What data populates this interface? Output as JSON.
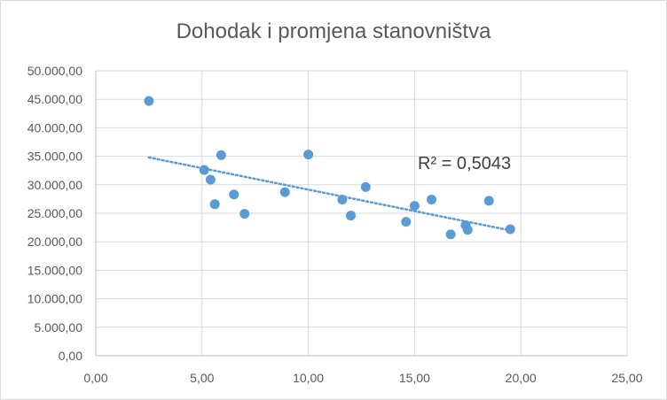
{
  "chart_data": {
    "type": "scatter",
    "title": "Dohodak i promjena stanovništva",
    "xlabel": "",
    "ylabel": "",
    "xlim": [
      0,
      25
    ],
    "ylim": [
      0,
      50000
    ],
    "x_ticks": [
      0,
      5,
      10,
      15,
      20,
      25
    ],
    "y_ticks": [
      0,
      5000,
      10000,
      15000,
      20000,
      25000,
      30000,
      35000,
      40000,
      45000,
      50000
    ],
    "x_tick_labels": [
      "0,00",
      "5,00",
      "10,00",
      "15,00",
      "20,00",
      "25,00"
    ],
    "y_tick_labels": [
      "0,00",
      "5.000,00",
      "10.000,00",
      "15.000,00",
      "20.000,00",
      "25.000,00",
      "30.000,00",
      "35.000,00",
      "40.000,00",
      "45.000,00",
      "50.000,00"
    ],
    "grid": true,
    "legend": "none",
    "point_color": "#5b9bd5",
    "trendline_color": "#5b9bd5",
    "points": [
      {
        "x": 2.5,
        "y": 44700
      },
      {
        "x": 5.1,
        "y": 32600
      },
      {
        "x": 5.4,
        "y": 30900
      },
      {
        "x": 5.6,
        "y": 26600
      },
      {
        "x": 5.9,
        "y": 35200
      },
      {
        "x": 6.5,
        "y": 28300
      },
      {
        "x": 7.0,
        "y": 24900
      },
      {
        "x": 8.9,
        "y": 28700
      },
      {
        "x": 10.0,
        "y": 35300
      },
      {
        "x": 11.6,
        "y": 27400
      },
      {
        "x": 12.0,
        "y": 24600
      },
      {
        "x": 12.7,
        "y": 29600
      },
      {
        "x": 14.6,
        "y": 23500
      },
      {
        "x": 15.0,
        "y": 26300
      },
      {
        "x": 15.8,
        "y": 27400
      },
      {
        "x": 16.7,
        "y": 21300
      },
      {
        "x": 17.4,
        "y": 22900
      },
      {
        "x": 17.5,
        "y": 22100
      },
      {
        "x": 18.5,
        "y": 27200
      },
      {
        "x": 19.5,
        "y": 22200
      }
    ],
    "trendline": {
      "type": "linear",
      "x": [
        2.5,
        19.5
      ],
      "y": [
        34800,
        22000
      ],
      "r_squared_label": "R² = 0,5043"
    }
  }
}
